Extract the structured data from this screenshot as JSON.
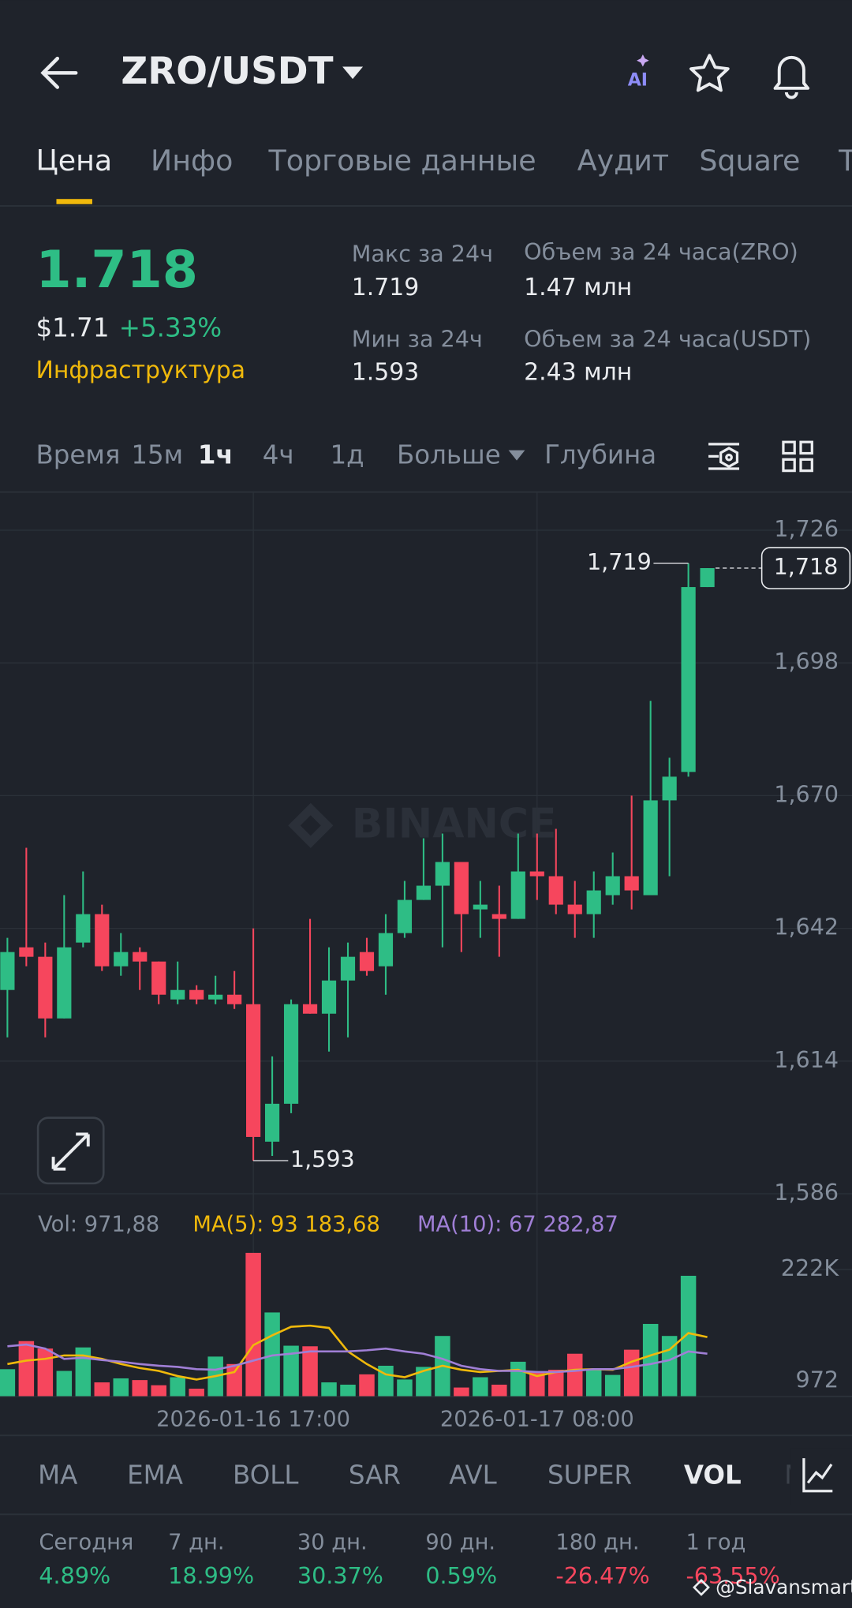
{
  "header": {
    "pair": "ZRO/USDT",
    "ai_label": "AI"
  },
  "tabs": [
    "Цена",
    "Инфо",
    "Торговые данные",
    "Аудит",
    "Square",
    "Т"
  ],
  "price": {
    "last": "1.718",
    "usd": "$1.71",
    "change": "+5.33%",
    "category": "Инфраструктура"
  },
  "stats": {
    "high_label": "Макс за 24ч",
    "high": "1.719",
    "low_label": "Мин за 24ч",
    "low": "1.593",
    "vol_zro_label": "Объем за 24 часа(ZRO)",
    "vol_zro": "1.47 млн",
    "vol_usdt_label": "Объем за 24 часа(USDT)",
    "vol_usdt": "2.43 млн"
  },
  "timeframes": {
    "label": "Время",
    "items": [
      "15м",
      "1ч",
      "4ч",
      "1д"
    ],
    "more": "Больше",
    "depth": "Глубина"
  },
  "watermark": "BINANCE",
  "chart_data": [
    {
      "type": "candlestick",
      "up_color": "#2ebd85",
      "down_color": "#f6465d",
      "open": [
        1.629,
        1.638,
        1.636,
        1.623,
        1.639,
        1.645,
        1.634,
        1.637,
        1.635,
        1.627,
        1.629,
        1.627,
        1.628,
        1.626,
        1.597,
        1.605,
        1.626,
        1.624,
        1.631,
        1.637,
        1.634,
        1.641,
        1.648,
        1.651,
        1.656,
        1.646,
        1.645,
        1.644,
        1.654,
        1.653,
        1.647,
        1.645,
        1.649,
        1.653,
        1.649,
        1.669,
        1.675,
        1.714
      ],
      "high": [
        1.64,
        1.659,
        1.639,
        1.649,
        1.654,
        1.647,
        1.641,
        1.638,
        1.635,
        1.635,
        1.63,
        1.632,
        1.633,
        1.642,
        1.615,
        1.627,
        1.644,
        1.638,
        1.639,
        1.64,
        1.645,
        1.652,
        1.661,
        1.662,
        1.656,
        1.652,
        1.651,
        1.662,
        1.662,
        1.663,
        1.652,
        1.654,
        1.658,
        1.67,
        1.69,
        1.678,
        1.719,
        1.718
      ],
      "low": [
        1.619,
        1.634,
        1.619,
        1.623,
        1.638,
        1.633,
        1.632,
        1.629,
        1.626,
        1.626,
        1.626,
        1.626,
        1.625,
        1.593,
        1.594,
        1.603,
        1.624,
        1.616,
        1.619,
        1.632,
        1.628,
        1.64,
        1.648,
        1.638,
        1.637,
        1.64,
        1.636,
        1.644,
        1.648,
        1.645,
        1.64,
        1.64,
        1.647,
        1.646,
        1.649,
        1.653,
        1.674,
        1.714
      ],
      "close": [
        1.637,
        1.636,
        1.623,
        1.638,
        1.645,
        1.634,
        1.637,
        1.635,
        1.628,
        1.629,
        1.627,
        1.628,
        1.626,
        1.598,
        1.605,
        1.626,
        1.624,
        1.631,
        1.636,
        1.633,
        1.641,
        1.648,
        1.651,
        1.656,
        1.645,
        1.647,
        1.644,
        1.654,
        1.653,
        1.647,
        1.645,
        1.65,
        1.653,
        1.65,
        1.669,
        1.674,
        1.714,
        1.718
      ],
      "ylim": [
        1.583,
        1.734
      ],
      "yticks": [
        {
          "value": 1.726,
          "label": "1,726"
        },
        {
          "value": 1.698,
          "label": "1,698"
        },
        {
          "value": 1.67,
          "label": "1,670"
        },
        {
          "value": 1.642,
          "label": "1,642"
        },
        {
          "value": 1.614,
          "label": "1,614"
        },
        {
          "value": 1.586,
          "label": "1,586"
        }
      ],
      "grid": true,
      "high_label": {
        "value": 1.719,
        "label": "1,719"
      },
      "low_label": {
        "value": 1.593,
        "label": "1,593"
      },
      "last_price": {
        "value": 1.718,
        "label": "1,718"
      }
    },
    {
      "type": "bar",
      "legend": "Vol: 971,88",
      "categories": [
        null,
        null,
        null,
        null,
        null,
        null,
        null,
        null,
        null,
        null,
        null,
        null,
        null,
        "2026-01-16 17:00",
        null,
        null,
        null,
        null,
        null,
        null,
        null,
        null,
        null,
        null,
        null,
        null,
        null,
        null,
        "2026-01-17 08:00",
        null,
        null,
        null,
        null,
        null,
        null,
        null,
        null,
        null
      ],
      "values": [
        48000,
        97000,
        84000,
        45000,
        86000,
        25000,
        32000,
        29000,
        20000,
        34000,
        14000,
        70000,
        57000,
        251000,
        147000,
        89000,
        88000,
        25000,
        21000,
        39000,
        54000,
        30000,
        52000,
        106000,
        16000,
        34000,
        21000,
        61000,
        43000,
        47000,
        75000,
        48000,
        38000,
        82000,
        127000,
        106000,
        211000,
        971.88
      ],
      "series": [
        {
          "name": "MA(5): 93 183,68",
          "color": "#f0b90b",
          "values": [
            57000,
            63000,
            66000,
            72000,
            72000,
            66000,
            57000,
            50000,
            45000,
            36000,
            30000,
            36000,
            43000,
            90000,
            107000,
            122000,
            124000,
            120000,
            79000,
            57000,
            39000,
            34000,
            45000,
            54000,
            47000,
            43000,
            45000,
            47000,
            36000,
            43000,
            47000,
            48000,
            47000,
            61000,
            72000,
            82000,
            111000,
            104000
          ]
        },
        {
          "name": "MA(10): 67 282,87",
          "color": "#a07fd6",
          "values": [
            88000,
            91000,
            84000,
            66000,
            68000,
            64000,
            61000,
            57000,
            54000,
            52000,
            48000,
            47000,
            54000,
            63000,
            72000,
            75000,
            79000,
            79000,
            79000,
            81000,
            84000,
            79000,
            75000,
            66000,
            54000,
            48000,
            45000,
            45000,
            43000,
            43000,
            45000,
            48000,
            48000,
            52000,
            57000,
            64000,
            79000,
            75000
          ]
        }
      ],
      "ylim": [
        0,
        272000
      ],
      "yticks": [
        {
          "value": 222000,
          "label": "222K"
        },
        972
      ]
    }
  ],
  "indicators": [
    "MA",
    "EMA",
    "BOLL",
    "SAR",
    "AVL",
    "SUPER",
    "VOL",
    "M"
  ],
  "performance": [
    {
      "label": "Сегодня",
      "value": "4.89%"
    },
    {
      "label": "7 дн.",
      "value": "18.99%"
    },
    {
      "label": "30 дн.",
      "value": "30.37%"
    },
    {
      "label": "90 дн.",
      "value": "0.59%"
    },
    {
      "label": "180 дн.",
      "value": "-26.47%"
    },
    {
      "label": "1 год",
      "value": "-63.55%"
    }
  ],
  "credit": "@Slavansmart"
}
